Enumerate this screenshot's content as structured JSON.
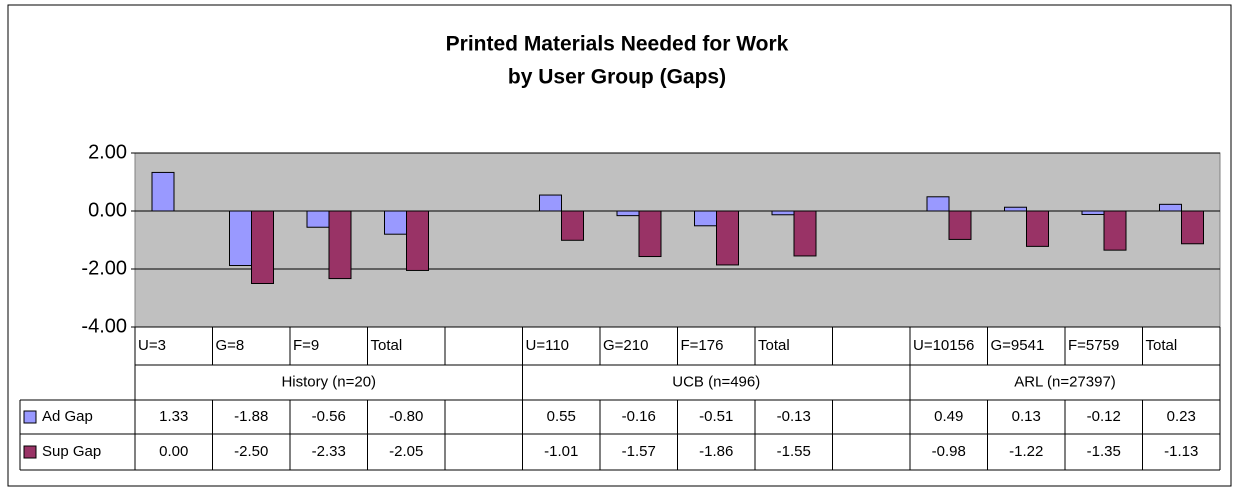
{
  "chart_data": {
    "type": "bar",
    "title": "Printed Materials Needed for Work",
    "subtitle": "by User Group (Gaps)",
    "categories": [
      "U=3",
      "G=8",
      "F=9",
      "Total",
      null,
      "U=110",
      "G=210",
      "F=176",
      "Total",
      null,
      "U=10156",
      "G=9541",
      "F=5759",
      "Total"
    ],
    "groups": [
      "History (n=20)",
      "UCB (n=496)",
      "ARL (n=27397)"
    ],
    "series": [
      {
        "name": "Ad Gap",
        "color": "#9999ff",
        "values": [
          1.33,
          -1.88,
          -0.56,
          -0.8,
          null,
          0.55,
          -0.16,
          -0.51,
          -0.13,
          null,
          0.49,
          0.13,
          -0.12,
          0.23
        ],
        "value_labels": [
          "1.33",
          "-1.88",
          "-0.56",
          "-0.80",
          null,
          "0.55",
          "-0.16",
          "-0.51",
          "-0.13",
          null,
          "0.49",
          "0.13",
          "-0.12",
          "0.23"
        ]
      },
      {
        "name": "Sup Gap",
        "color": "#993366",
        "values": [
          0,
          -2.5,
          -2.33,
          -2.05,
          null,
          -1.01,
          -1.57,
          -1.86,
          -1.55,
          null,
          -0.98,
          -1.22,
          -1.35,
          -1.13
        ],
        "value_labels": [
          "0.00",
          "-2.50",
          "-2.33",
          "-2.05",
          null,
          "-1.01",
          "-1.57",
          "-1.86",
          "-1.55",
          null,
          "-0.98",
          "-1.22",
          "-1.35",
          "-1.13"
        ]
      }
    ],
    "ylim": [
      -4,
      2
    ],
    "yticks": [
      {
        "value": -4,
        "label": "-4.00"
      },
      {
        "value": -2,
        "label": "-2.00"
      },
      {
        "value": 0,
        "label": "0.00"
      },
      {
        "value": 2,
        "label": "2.00"
      }
    ],
    "grid": true,
    "plot_background": "#c0c0c0"
  }
}
